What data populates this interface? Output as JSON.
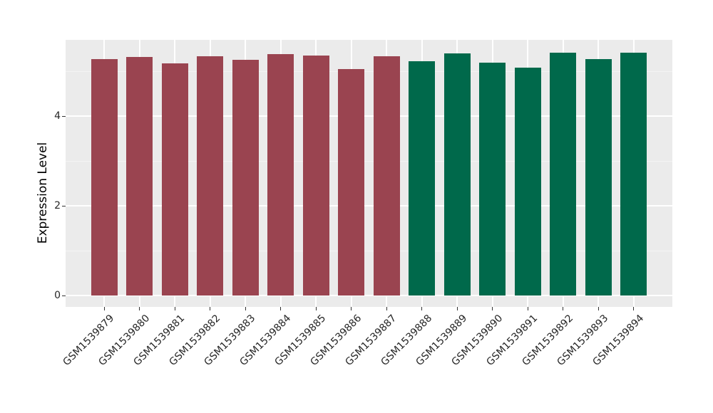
{
  "chart_data": {
    "type": "bar",
    "title": "",
    "xlabel": "",
    "ylabel": "Expression Level",
    "categories": [
      "GSM1539879",
      "GSM1539880",
      "GSM1539881",
      "GSM1539882",
      "GSM1539883",
      "GSM1539884",
      "GSM1539885",
      "GSM1539886",
      "GSM1539887",
      "GSM1539888",
      "GSM1539889",
      "GSM1539890",
      "GSM1539891",
      "GSM1539892",
      "GSM1539893",
      "GSM1539894"
    ],
    "values": [
      5.27,
      5.31,
      5.17,
      5.33,
      5.26,
      5.38,
      5.35,
      5.05,
      5.33,
      5.23,
      5.4,
      5.19,
      5.08,
      5.42,
      5.27,
      5.41
    ],
    "bar_colors": [
      "#9A4450",
      "#9A4450",
      "#9A4450",
      "#9A4450",
      "#9A4450",
      "#9A4450",
      "#9A4450",
      "#9A4450",
      "#9A4450",
      "#00694B",
      "#00694B",
      "#00694B",
      "#00694B",
      "#00694B",
      "#00694B",
      "#00694B"
    ],
    "yticks": {
      "values": [
        0,
        2,
        4
      ],
      "labels": [
        "0",
        "2",
        "4"
      ]
    },
    "y_minor_gridlines": [
      1,
      3,
      5
    ],
    "ylim": [
      -0.25,
      5.7
    ],
    "x_label_rotation_deg": 45,
    "legend": "none",
    "grid": "on",
    "colors": {
      "panel_background": "#EBEBEB",
      "figure_background": "#FFFFFF",
      "gridline_major": "#FFFFFF",
      "gridline_minor": "#F4F4F4",
      "group1_bar": "#9A4450",
      "group2_bar": "#00694B",
      "axis_text": "#262626",
      "tick_mark": "#333333"
    }
  }
}
